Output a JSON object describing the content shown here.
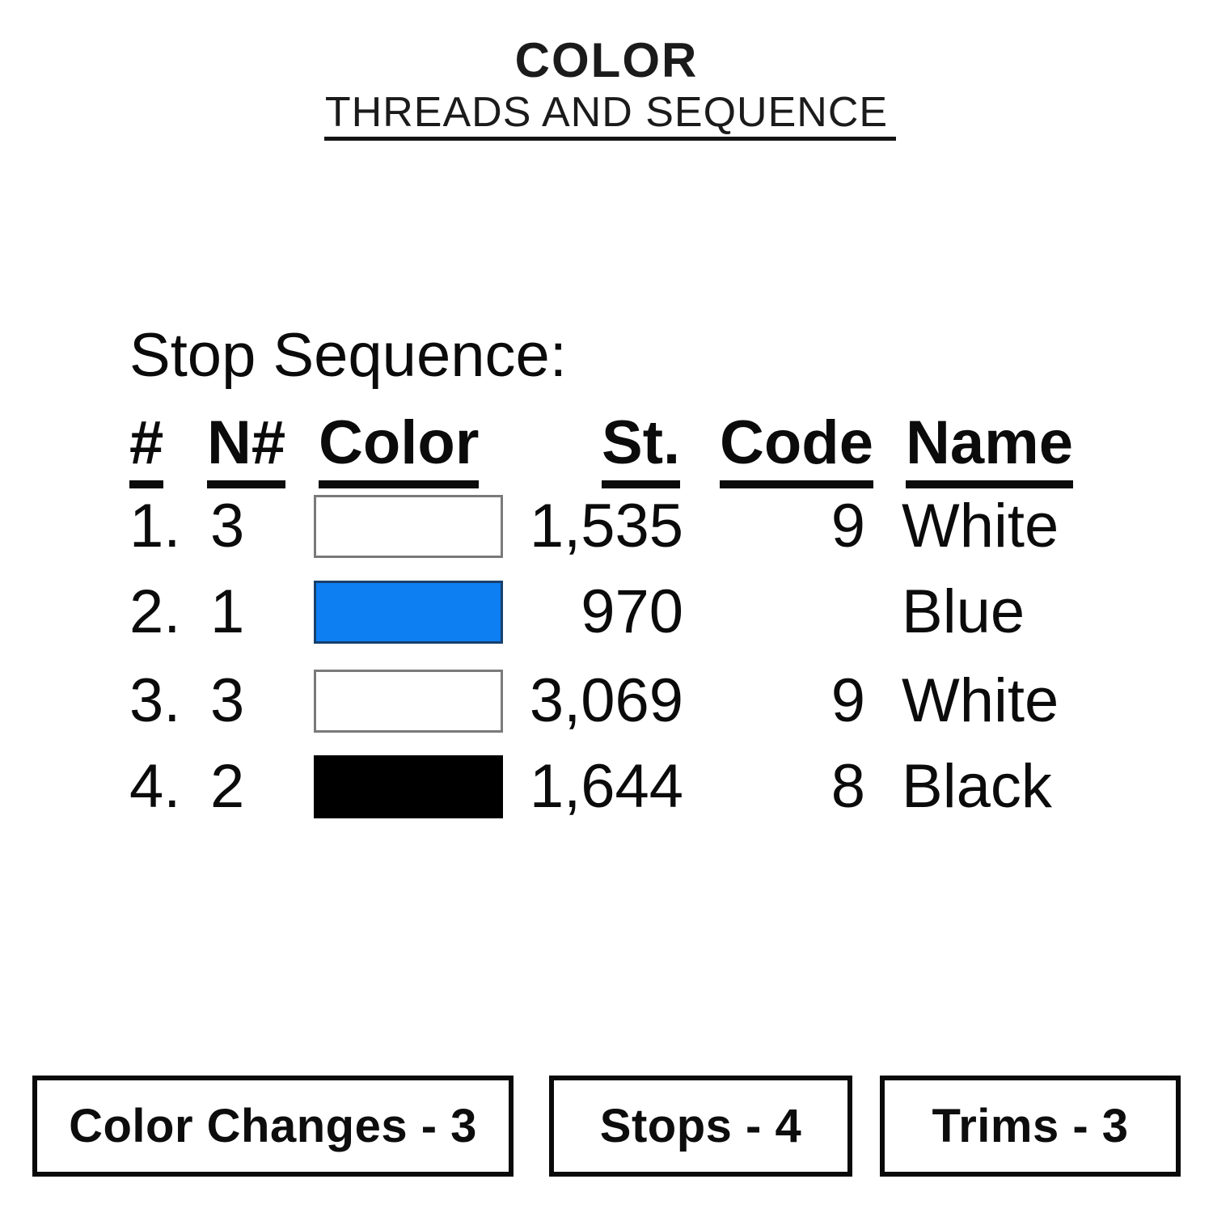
{
  "header": {
    "title": "COLOR",
    "subtitle": "THREADS AND SEQUENCE"
  },
  "stop_sequence": {
    "heading": "Stop Sequence:",
    "columns": [
      "#",
      "N#",
      "Color",
      "St.",
      "Code",
      "Name"
    ],
    "rows": [
      {
        "num": "1.",
        "n": "3",
        "swatch_fill": "#ffffff",
        "swatch_border": "#7a7a7a",
        "st": "1,535",
        "code": "9",
        "name": "White"
      },
      {
        "num": "2.",
        "n": "1",
        "swatch_fill": "#0d7ff2",
        "swatch_border": "#17406d",
        "st": "970",
        "code": "",
        "name": "Blue"
      },
      {
        "num": "3.",
        "n": "3",
        "swatch_fill": "#ffffff",
        "swatch_border": "#7a7a7a",
        "st": "3,069",
        "code": "9",
        "name": "White"
      },
      {
        "num": "4.",
        "n": "2",
        "swatch_fill": "#000000",
        "swatch_border": "#000000",
        "st": "1,644",
        "code": "8",
        "name": "Black"
      }
    ]
  },
  "summary": {
    "color_changes": "Color Changes - 3",
    "stops": "Stops - 4",
    "trims": "Trims - 3"
  },
  "colors": {
    "accent_blue": "#0d7ff2",
    "text": "#0b0b0b",
    "rule": "#141414"
  }
}
